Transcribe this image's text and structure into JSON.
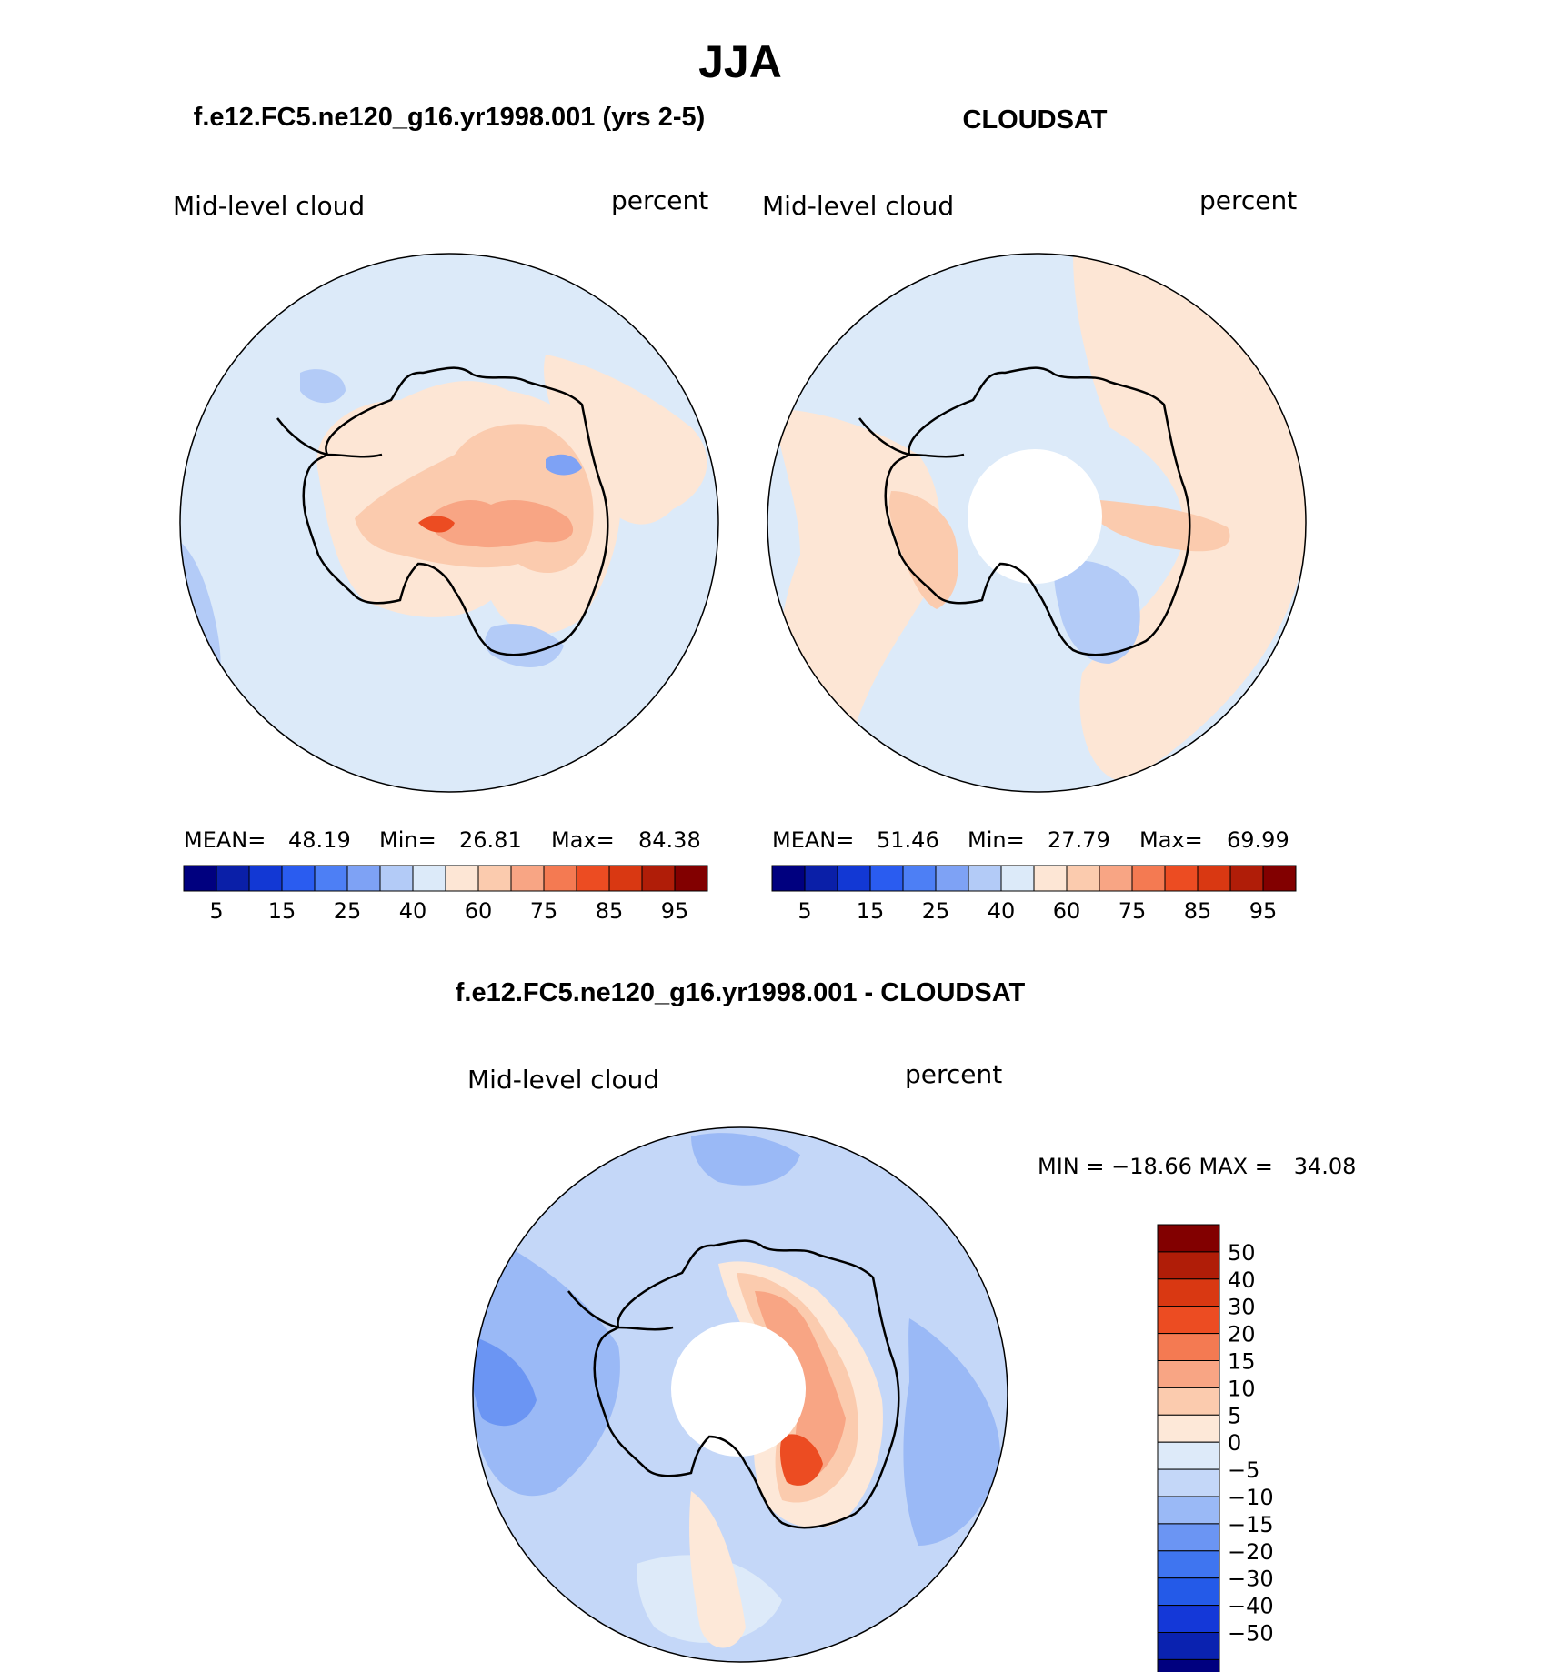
{
  "main_title": "JJA",
  "panels": {
    "model": {
      "title": "f.e12.FC5.ne120_g16.yr1998.001 (yrs 2-5)",
      "variable": "Mid-level cloud",
      "units": "percent",
      "stats": {
        "mean_label": "MEAN=",
        "mean": "48.19",
        "min_label": "Min=",
        "min": "26.81",
        "max_label": "Max=",
        "max": "84.38"
      }
    },
    "obs": {
      "title": "CLOUDSAT",
      "variable": "Mid-level cloud",
      "units": "percent",
      "stats": {
        "mean_label": "MEAN=",
        "mean": "51.46",
        "min_label": "Min=",
        "min": "27.79",
        "max_label": "Max=",
        "max": "69.99"
      }
    },
    "diff": {
      "title": "f.e12.FC5.ne120_g16.yr1998.001 - CLOUDSAT",
      "variable": "Mid-level cloud",
      "units": "percent",
      "minmax": "MIN = −18.66 MAX =   34.08"
    }
  },
  "colors": {
    "abs_scale": [
      "#00007f",
      "#0a1fa8",
      "#1238d4",
      "#2a5cf0",
      "#4d7ff5",
      "#7ea2f5",
      "#b3cbf7",
      "#dceaf9",
      "#fde6d5",
      "#fbcbae",
      "#f8a584",
      "#f47a52",
      "#ec4c22",
      "#d93812",
      "#b01d08",
      "#820000"
    ],
    "diff_scale": [
      "#00007f",
      "#0a22b0",
      "#1438d8",
      "#245ae8",
      "#3f75f0",
      "#6b95f3",
      "#9ab9f6",
      "#c4d7f8",
      "#ddeaf9",
      "#fde8d8",
      "#fbcbae",
      "#f8a584",
      "#f47a52",
      "#ec4c22",
      "#d93812",
      "#b01d08",
      "#820000"
    ],
    "hole": "#ffffff",
    "coast": "#000000"
  },
  "chart_data": [
    {
      "type": "heatmap",
      "projection": "south-polar-stereographic",
      "title": "f.e12.FC5.ne120_g16.yr1998.001 (yrs 2-5)",
      "variable": "Mid-level cloud",
      "units": "percent",
      "mean": 48.19,
      "min": 26.81,
      "max": 84.38,
      "colorbar_ticks": [
        "5",
        "15",
        "25",
        "40",
        "60",
        "75",
        "85",
        "95"
      ]
    },
    {
      "type": "heatmap",
      "projection": "south-polar-stereographic",
      "title": "CLOUDSAT",
      "variable": "Mid-level cloud",
      "units": "percent",
      "mean": 51.46,
      "min": 27.79,
      "max": 69.99,
      "colorbar_ticks": [
        "5",
        "15",
        "25",
        "40",
        "60",
        "75",
        "85",
        "95"
      ]
    },
    {
      "type": "heatmap",
      "projection": "south-polar-stereographic",
      "title": "f.e12.FC5.ne120_g16.yr1998.001 - CLOUDSAT",
      "variable": "Mid-level cloud",
      "units": "percent",
      "min": -18.66,
      "max": 34.08,
      "colorbar_ticks": [
        "50",
        "40",
        "30",
        "20",
        "15",
        "10",
        "5",
        "0",
        "−5",
        "−10",
        "−15",
        "−20",
        "−30",
        "−40",
        "−50"
      ]
    }
  ]
}
